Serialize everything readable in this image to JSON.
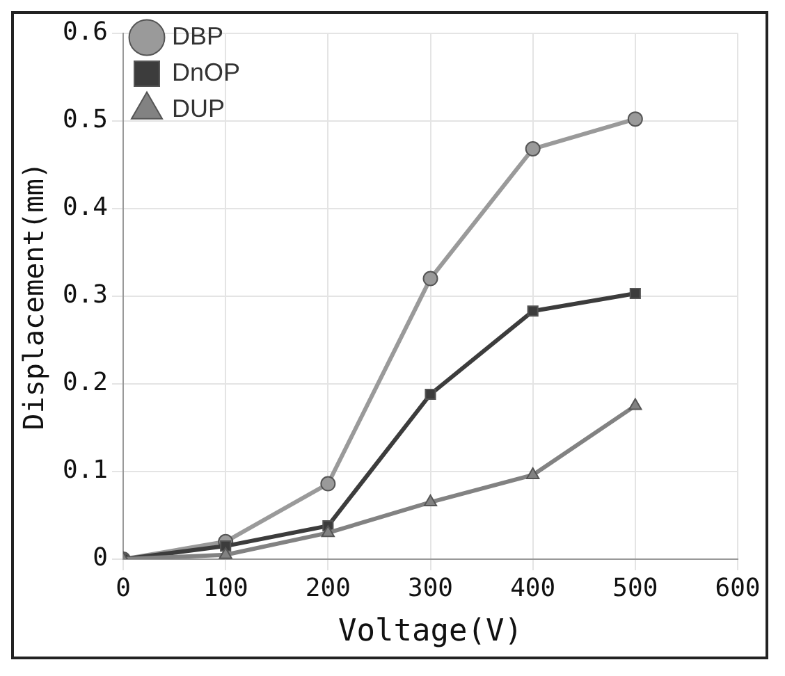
{
  "chart_data": {
    "type": "line",
    "xlabel": "Voltage(V)",
    "ylabel": "Displacement(mm)",
    "x": [
      0,
      100,
      200,
      300,
      400,
      500
    ],
    "series": [
      {
        "name": "DBP",
        "color": "#9a9a9a",
        "marker": "circle",
        "values": [
          0,
          0.02,
          0.086,
          0.32,
          0.468,
          0.502
        ]
      },
      {
        "name": "DnOP",
        "color": "#3c3c3c",
        "marker": "square",
        "values": [
          0,
          0.015,
          0.038,
          0.188,
          0.283,
          0.303
        ]
      },
      {
        "name": "DUP",
        "color": "#828282",
        "marker": "triangle",
        "values": [
          0,
          0.005,
          0.03,
          0.065,
          0.096,
          0.175
        ]
      }
    ],
    "xlim": [
      0,
      600
    ],
    "xticks": [
      0,
      100,
      200,
      300,
      400,
      500,
      600
    ],
    "ylim": [
      0,
      0.6
    ],
    "yticks": [
      0,
      0.1,
      0.2,
      0.3,
      0.4,
      0.5,
      0.6
    ],
    "grid": true,
    "legend": "top left",
    "line_style": "solid"
  }
}
